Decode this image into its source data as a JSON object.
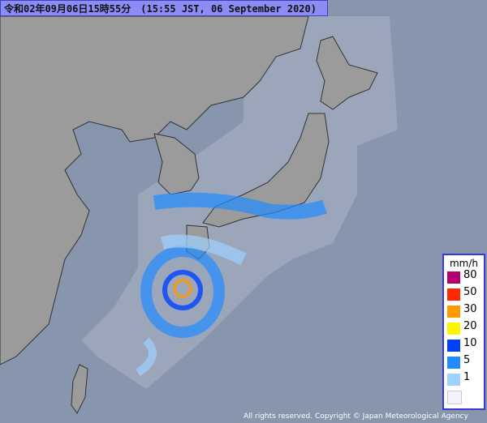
{
  "header": {
    "title": "令和02年09月06日15時55分　(15:55 JST, 06 September 2020)"
  },
  "legend": {
    "unit": "mm/h",
    "levels": [
      {
        "label": "80",
        "color": "#b4006e"
      },
      {
        "label": "50",
        "color": "#ff2800"
      },
      {
        "label": "30",
        "color": "#ff9900"
      },
      {
        "label": "20",
        "color": "#faf500"
      },
      {
        "label": "10",
        "color": "#0041ff"
      },
      {
        "label": "5",
        "color": "#218cff"
      },
      {
        "label": "1",
        "color": "#a0d2ff"
      }
    ]
  },
  "footer": {
    "copyright": "All rights reserved. Copyright © Japan Meteorological Agency"
  }
}
